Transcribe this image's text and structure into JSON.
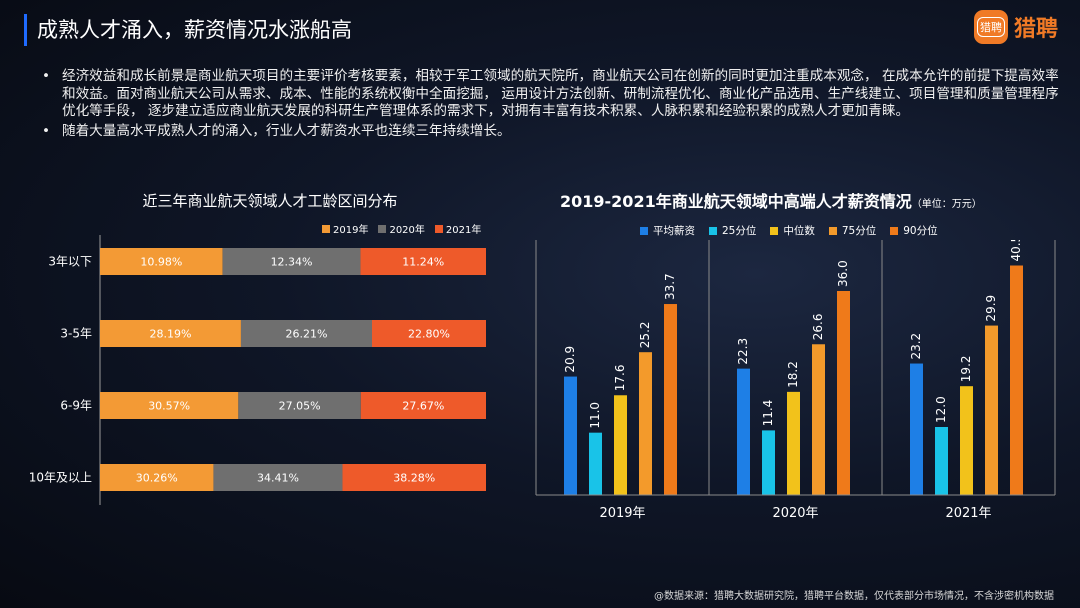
{
  "header": {
    "title": "成熟人才涌入，薪资情况水涨船高",
    "logo_badge": "猎聘",
    "logo_text": "猎聘"
  },
  "bullets": [
    "经济效益和成长前景是商业航天项目的主要评价考核要素，相较于军工领域的航天院所，商业航天公司在创新的同时更加注重成本观念， 在成本允许的前提下提高效率和效益。面对商业航天公司从需求、成本、性能的系统权衡中全面挖掘， 运用设计方法创新、研制流程优化、商业化产品选用、生产线建立、项目管理和质量管理程序优化等手段， 逐步建立适应商业航天发展的科研生产管理体系的需求下，对拥有丰富有技术积累、人脉积累和经验积累的成熟人才更加青睐。",
    "随着大量高水平成熟人才的涌入，行业人才薪资水平也连续三年持续增长。"
  ],
  "footer": "@数据来源：猎聘大数据研究院，猎聘平台数据，仅代表部分市场情况，不含涉密机构数据",
  "colors": {
    "accent": "#1f6bff",
    "orange": "#f39a35",
    "gray": "#6f6f6f",
    "red": "#ee5a2a",
    "blue": "#1e7fe6",
    "cyan": "#19c3e8",
    "yellow": "#f2c21b",
    "orange75": "#f39a2b",
    "orange90": "#ef7a1a"
  },
  "chart_data": [
    {
      "type": "bar",
      "orientation": "horizontal-stacked",
      "title": "近三年商业航天领域人才工龄区间分布",
      "categories": [
        "3年以下",
        "3-5年",
        "6-9年",
        "10年及以上"
      ],
      "series": [
        {
          "name": "2019年",
          "values": [
            10.98,
            28.19,
            30.57,
            30.26
          ],
          "labels": [
            "10.98%",
            "28.19%",
            "30.57%",
            "30.26%"
          ],
          "color": "#f39a35"
        },
        {
          "name": "2020年",
          "values": [
            12.34,
            26.21,
            27.05,
            34.41
          ],
          "labels": [
            "12.34%",
            "26.21%",
            "27.05%",
            "34.41%"
          ],
          "color": "#6f6f6f"
        },
        {
          "name": "2021年",
          "values": [
            11.24,
            22.8,
            27.67,
            38.28
          ],
          "labels": [
            "11.24%",
            "22.80%",
            "27.67%",
            "38.28%"
          ],
          "color": "#ee5a2a"
        }
      ],
      "legend": "top-right"
    },
    {
      "type": "bar",
      "orientation": "vertical-grouped",
      "title": "2019-2021年商业航天领域中高端人才薪资情况",
      "unit_label": "（单位：万元）",
      "categories": [
        "2019年",
        "2020年",
        "2021年"
      ],
      "series": [
        {
          "name": "平均薪资",
          "values": [
            20.9,
            22.3,
            23.2
          ],
          "color": "#1e7fe6"
        },
        {
          "name": "25分位",
          "values": [
            11.0,
            11.4,
            12.0
          ],
          "color": "#19c3e8"
        },
        {
          "name": "中位数",
          "values": [
            17.6,
            18.2,
            19.2
          ],
          "color": "#f2c21b"
        },
        {
          "name": "75分位",
          "values": [
            25.2,
            26.6,
            29.9
          ],
          "color": "#f39a2b"
        },
        {
          "name": "90分位",
          "values": [
            33.7,
            36.0,
            40.5
          ],
          "color": "#ef7a1a"
        }
      ],
      "legend": "top",
      "ylim": [
        0,
        45
      ]
    }
  ]
}
